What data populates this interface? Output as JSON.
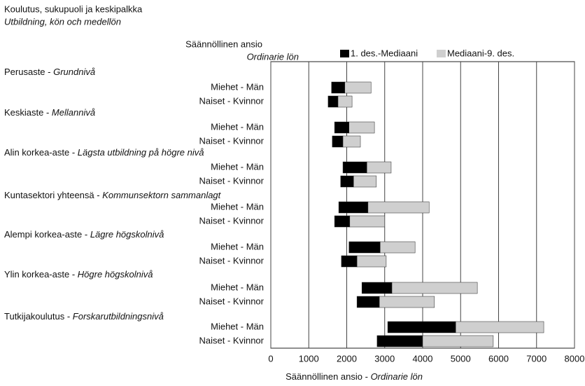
{
  "chart_data": {
    "type": "floating-bar",
    "title": "Koulutus, sukupuoli ja keskipalkka",
    "subtitle": "Utbildning, kön och medellön",
    "axis_heading": "Säännöllinen ansio",
    "axis_heading_sv": "Ordinarie lön",
    "xlabel": "Säännöllinen ansio - ",
    "xlabel_sv": "Ordinarie lön",
    "groups": [
      {
        "label": "Perusaste - ",
        "label_sv": "Grundnivå"
      },
      {
        "label": "Keskiaste - ",
        "label_sv": "Mellannivå"
      },
      {
        "label": "Alin korkea-aste - ",
        "label_sv": "Lägsta utbildning på högre nivå"
      },
      {
        "label": "Kuntasektori yhteensä - ",
        "label_sv": "Kommunsektorn sammanlagt"
      },
      {
        "label": "Alempi korkea-aste - ",
        "label_sv": "Lägre högskolnivå"
      },
      {
        "label": "Ylin korkea-aste - ",
        "label_sv": "Högre högskolnivå"
      },
      {
        "label": "Tutkijakoulutus - ",
        "label_sv": "Forskarutbildningsnivå"
      }
    ],
    "categories": [
      "Miehet - Män",
      "Naiset - Kvinnor",
      "Miehet - Män",
      "Naiset - Kvinnor",
      "Miehet - Män",
      "Naiset - Kvinnor",
      "Miehet - Män",
      "Naiset - Kvinnor",
      "Miehet - Män",
      "Naiset - Kvinnor",
      "Miehet - Män",
      "Naiset - Kvinnor",
      "Miehet - Män",
      "Naiset - Kvinnor"
    ],
    "series": [
      {
        "name": "1. des.-Mediaani",
        "color": "#000000",
        "values": [
          [
            1600,
            1950
          ],
          [
            1510,
            1770
          ],
          [
            1680,
            2060
          ],
          [
            1620,
            1900
          ],
          [
            1900,
            2530
          ],
          [
            1840,
            2180
          ],
          [
            1790,
            2560
          ],
          [
            1680,
            2080
          ],
          [
            2060,
            2880
          ],
          [
            1860,
            2270
          ],
          [
            2400,
            3190
          ],
          [
            2270,
            2860
          ],
          [
            3080,
            4870
          ],
          [
            2800,
            4000
          ]
        ]
      },
      {
        "name": "Mediaani-9. des.",
        "color": "#cfcfcf",
        "values": [
          [
            1950,
            2640
          ],
          [
            1770,
            2140
          ],
          [
            2060,
            2730
          ],
          [
            1900,
            2360
          ],
          [
            2530,
            3170
          ],
          [
            2180,
            2780
          ],
          [
            2560,
            4170
          ],
          [
            2080,
            3000
          ],
          [
            2880,
            3800
          ],
          [
            2270,
            3040
          ],
          [
            3190,
            5440
          ],
          [
            2860,
            4310
          ],
          [
            4870,
            7190
          ],
          [
            4000,
            5860
          ]
        ]
      }
    ],
    "xlim": [
      0,
      8000
    ],
    "xticks": [
      0,
      1000,
      2000,
      3000,
      4000,
      5000,
      6000,
      7000,
      8000
    ],
    "grid": true
  }
}
